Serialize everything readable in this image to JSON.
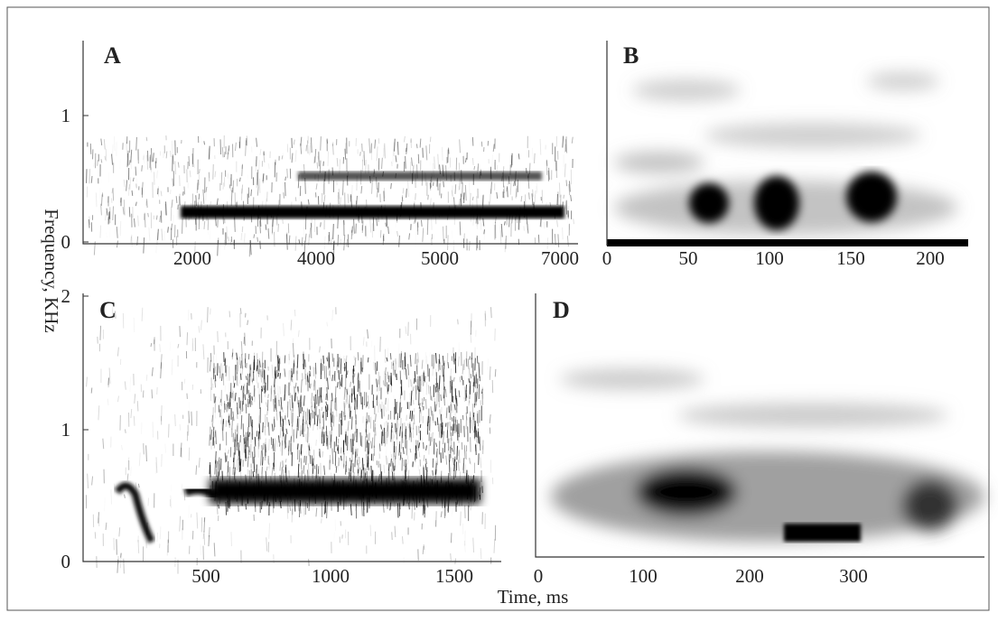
{
  "y_axis_label": "Frequency, KHz",
  "x_axis_label": "Time, ms",
  "panels": [
    {
      "label": "A",
      "y_tick_labels": [
        1,
        0
      ],
      "x_tick_labels": [
        2000,
        4000,
        5000,
        7000
      ]
    },
    {
      "label": "B",
      "y_tick_labels": [],
      "x_tick_labels": [
        0,
        50,
        100,
        150,
        200
      ]
    },
    {
      "label": "C",
      "y_tick_labels": [
        2,
        1,
        0
      ],
      "x_tick_labels": [
        500,
        1000,
        1500
      ]
    },
    {
      "label": "D",
      "y_tick_labels": [],
      "x_tick_labels": [
        0,
        100,
        200,
        300
      ]
    }
  ]
}
